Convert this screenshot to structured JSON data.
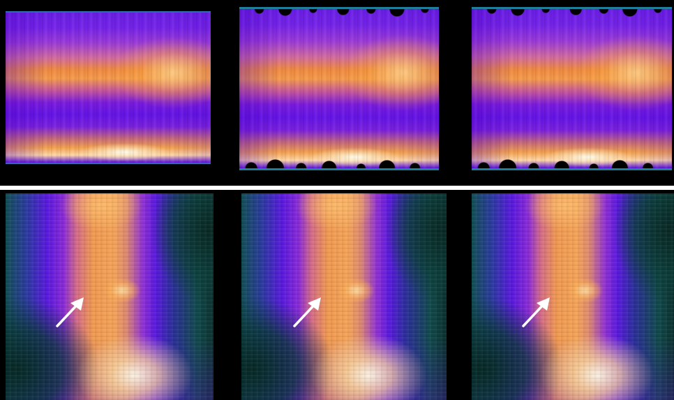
{
  "figure": {
    "rows": [
      {
        "name": "heatmap-strips",
        "panels": [
          "left",
          "middle",
          "right"
        ]
      },
      {
        "name": "vertebra-scans",
        "panels": [
          "left",
          "middle",
          "right"
        ]
      }
    ],
    "divider_color": "#ffffff",
    "background_color": "#000000",
    "strip_edge_color": "#1f7e9a",
    "arrow_color": "#ffffff",
    "arrows_count": 3,
    "colormap": [
      "#0a302e",
      "#114f55",
      "#5a18e0",
      "#8a2ad8",
      "#f29a50",
      "#ffe8c8"
    ]
  }
}
